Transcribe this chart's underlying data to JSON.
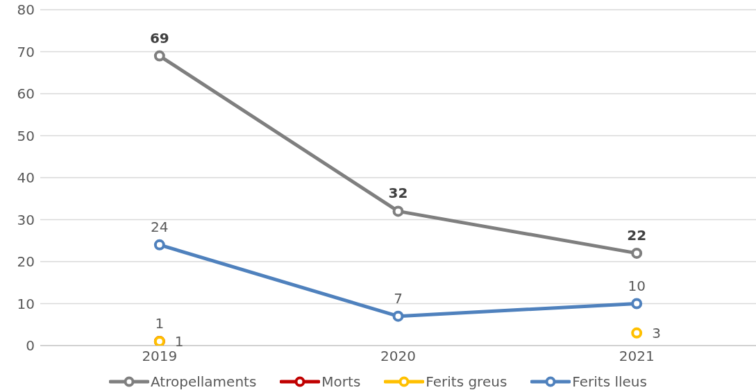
{
  "chart_data": {
    "type": "line",
    "categories": [
      "2019",
      "2020",
      "2021"
    ],
    "series": [
      {
        "name": "Atropellaments",
        "color": "#7f7f7f",
        "values": [
          69,
          32,
          22
        ]
      },
      {
        "name": "Morts",
        "type": "scatter",
        "color": "#c00000",
        "values": [
          1,
          null,
          null
        ]
      },
      {
        "name": "Ferits greus",
        "type": "scatter",
        "color": "#ffc000",
        "values": [
          1,
          null,
          3
        ]
      },
      {
        "name": "Ferits lleus",
        "color": "#4f81bd",
        "values": [
          24,
          7,
          10
        ]
      }
    ],
    "ylim": [
      0,
      80
    ],
    "yticks": [
      0,
      10,
      20,
      30,
      40,
      50,
      60,
      70,
      80
    ],
    "grid": "y",
    "legend": "bottom",
    "marker": "circle",
    "line_style": "solid",
    "data_labels": true
  }
}
